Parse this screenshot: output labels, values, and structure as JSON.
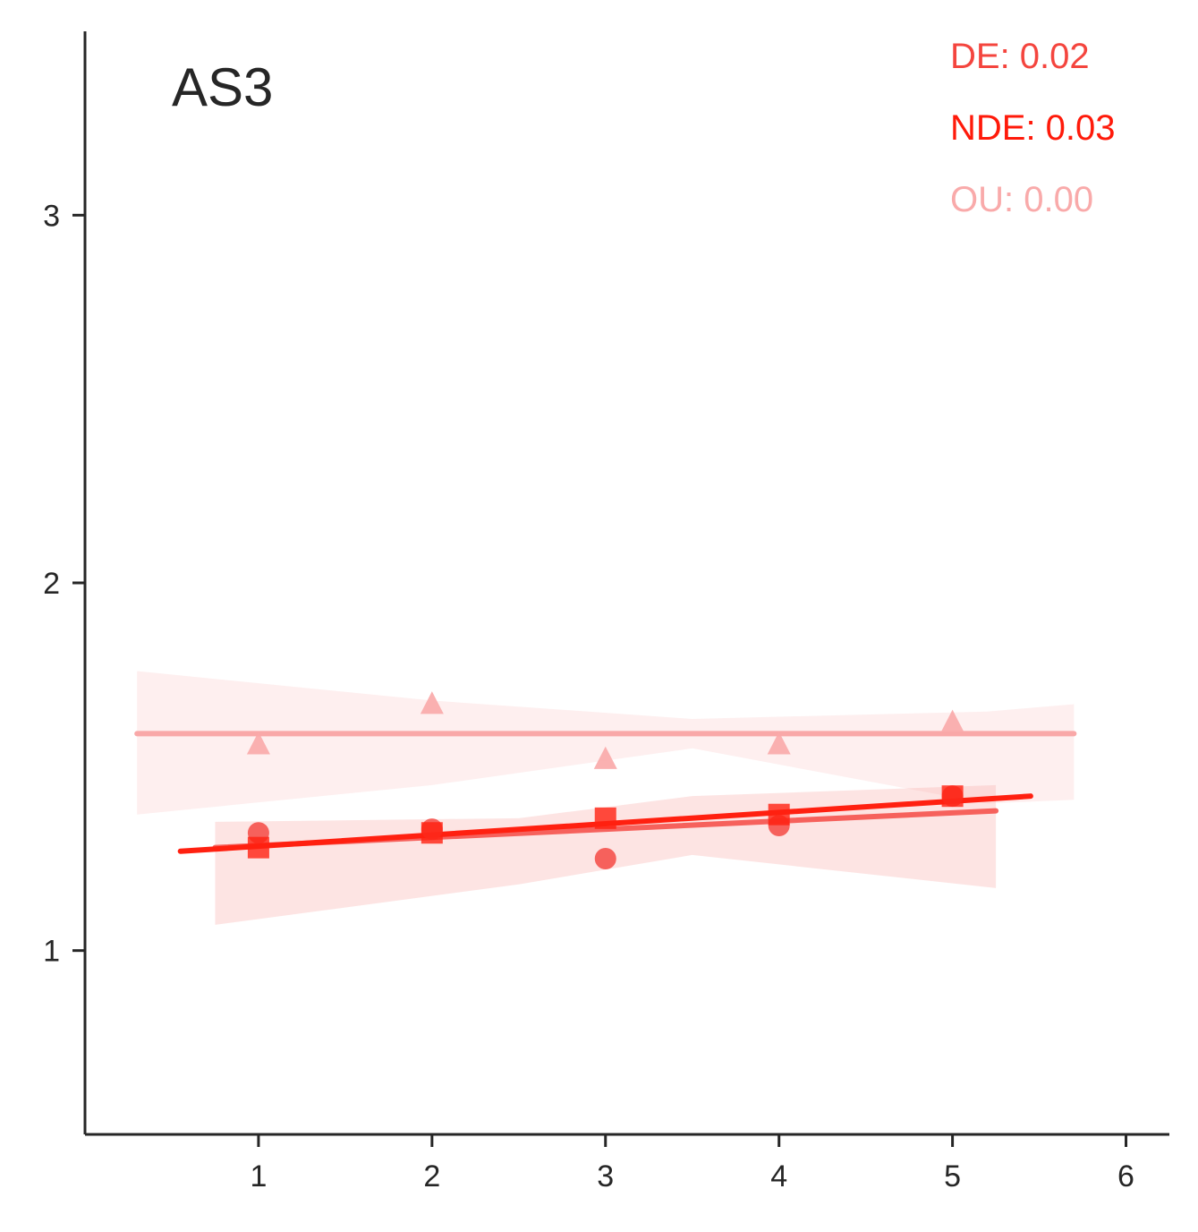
{
  "chart_data": {
    "type": "scatter",
    "title": "AS3",
    "xlabel": "",
    "ylabel": "",
    "xlim": [
      0.0,
      6.25
    ],
    "ylim": [
      0.5,
      3.5
    ],
    "x_ticks": [
      "1",
      "2",
      "3",
      "4",
      "5",
      "6"
    ],
    "y_ticks": [
      "1",
      "2",
      "3"
    ],
    "grid": false,
    "legend_position": "top-right",
    "annotations": [
      {
        "text": "DE: 0.02",
        "color": "#f4453e"
      },
      {
        "text": "NDE: 0.03",
        "color": "#ff1a0a"
      },
      {
        "text": "OU: 0.00",
        "color": "#f9aaaa"
      }
    ],
    "series": [
      {
        "name": "DE",
        "marker": "circle",
        "color": "#f44a44",
        "x": [
          1,
          2,
          3,
          4,
          5
        ],
        "y": [
          1.32,
          1.33,
          1.25,
          1.34,
          1.42
        ],
        "fit": {
          "x": [
            0.75,
            5.25
          ],
          "y": [
            1.28,
            1.38
          ]
        },
        "ci": {
          "x": [
            0.75,
            2.5,
            3.5,
            5.25
          ],
          "upper": [
            1.35,
            1.36,
            1.42,
            1.45
          ],
          "lower": [
            1.07,
            1.18,
            1.26,
            1.17
          ]
        }
      },
      {
        "name": "NDE",
        "marker": "square",
        "color": "#ff2010",
        "x": [
          1,
          2,
          3,
          4,
          5
        ],
        "y": [
          1.28,
          1.32,
          1.36,
          1.37,
          1.42
        ],
        "fit": {
          "x": [
            0.55,
            5.45
          ],
          "y": [
            1.27,
            1.42
          ]
        }
      },
      {
        "name": "OU",
        "marker": "triangle",
        "color": "#f9a8a8",
        "x": [
          1,
          2,
          3,
          4,
          5
        ],
        "y": [
          1.56,
          1.67,
          1.52,
          1.56,
          1.62
        ],
        "fit": {
          "x": [
            0.3,
            5.7
          ],
          "y": [
            1.59,
            1.59
          ]
        },
        "ci": {
          "x": [
            0.3,
            2.0,
            3.5,
            5.2,
            5.7
          ],
          "upper": [
            1.76,
            1.68,
            1.63,
            1.65,
            1.67
          ],
          "lower": [
            1.37,
            1.45,
            1.55,
            1.4,
            1.41
          ]
        }
      }
    ]
  }
}
